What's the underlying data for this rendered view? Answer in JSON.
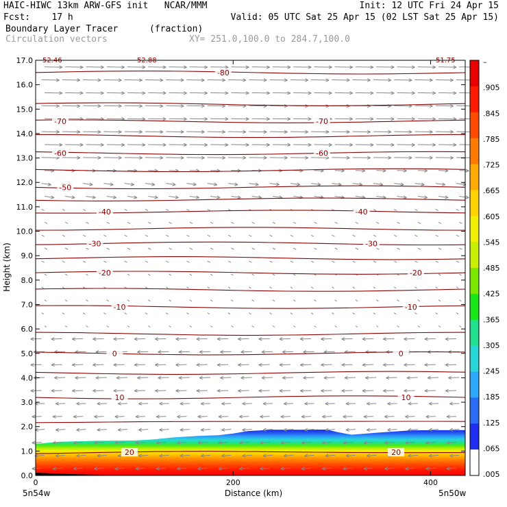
{
  "header": {
    "line1_left": "HAIC-HIWC 13km ARW-GFS init   NCAR/MMM",
    "line1_right": "Init: 12 UTC Fri 24 Apr 15",
    "fcst": "Fcst:    17 h",
    "valid": "Valid: 05 UTC Sat 25 Apr 15 (02 LST Sat 25 Apr 15)",
    "field1": "Boundary Layer Tracer",
    "field1_units": "(fraction)",
    "field2": "Circulation vectors",
    "xy_range": "XY= 251.0,100.0 to 284.7,100.0"
  },
  "corner_labels": {
    "left": "52.46",
    "mid": "52.88",
    "right": "51.75"
  },
  "colors": {
    "contour": "#8b0000",
    "vector": "#888888",
    "fill_scale": [
      "#ffffff",
      "#1f2ff0",
      "#2a6ef5",
      "#2ea8f8",
      "#28d8d8",
      "#20e090",
      "#18e818",
      "#7ce800",
      "#c8f000",
      "#f0f000",
      "#ffd200",
      "#ffaa00",
      "#ff7a00",
      "#ff4a00",
      "#ff1a00",
      "#e80000"
    ]
  },
  "chart_data": {
    "type": "heatmap",
    "xlabel": "Distance (km)",
    "ylabel": "Height (km)",
    "xlim": [
      0,
      435
    ],
    "ylim": [
      0,
      17
    ],
    "x_ticks": [
      0,
      200,
      400
    ],
    "y_ticks": [
      "0.0",
      "1.0",
      "2.0",
      "3.0",
      "4.0",
      "5.0",
      "6.0",
      "7.0",
      "8.0",
      "9.0",
      "10.0",
      "11.0",
      "12.0",
      "13.0",
      "14.0",
      "15.0",
      "16.0",
      "17.0"
    ],
    "x_end_labels": {
      "left": "5n54w",
      "right": "5n50w"
    },
    "colorbar_labels": [
      "–",
      ".905",
      ".845",
      ".785",
      ".725",
      ".665",
      ".605",
      ".545",
      ".485",
      ".425",
      ".365",
      ".305",
      ".245",
      ".185",
      ".125",
      ".065",
      ".005"
    ],
    "bl_top_km": [
      [
        0,
        1.3
      ],
      [
        25,
        1.38
      ],
      [
        60,
        1.42
      ],
      [
        100,
        1.43
      ],
      [
        120,
        1.48
      ],
      [
        140,
        1.56
      ],
      [
        165,
        1.62
      ],
      [
        185,
        1.65
      ],
      [
        200,
        1.72
      ],
      [
        215,
        1.82
      ],
      [
        240,
        1.87
      ],
      [
        270,
        1.87
      ],
      [
        295,
        1.88
      ],
      [
        305,
        1.78
      ],
      [
        320,
        1.67
      ],
      [
        345,
        1.75
      ],
      [
        380,
        1.85
      ],
      [
        435,
        1.86
      ]
    ],
    "temperature_contours": [
      {
        "value": -80,
        "height": 16.5,
        "labels": [
          [
            190,
            "-80"
          ]
        ]
      },
      {
        "value": -75,
        "height": 15.2,
        "labels": []
      },
      {
        "value": -70,
        "height": 14.5,
        "labels": [
          [
            25,
            "-70"
          ],
          [
            290,
            "-70"
          ]
        ]
      },
      {
        "value": -65,
        "height": 13.9,
        "labels": []
      },
      {
        "value": -60,
        "height": 13.2,
        "labels": [
          [
            25,
            "-60"
          ],
          [
            290,
            "-60"
          ]
        ]
      },
      {
        "value": -55,
        "height": 12.5,
        "labels": []
      },
      {
        "value": -50,
        "height": 11.8,
        "labels": [
          [
            30,
            "-50"
          ]
        ]
      },
      {
        "value": -45,
        "height": 11.3,
        "labels": []
      },
      {
        "value": -40,
        "height": 10.8,
        "labels": [
          [
            70,
            "-40"
          ],
          [
            330,
            "-40"
          ]
        ]
      },
      {
        "value": -35,
        "height": 10.1,
        "labels": []
      },
      {
        "value": -30,
        "height": 9.5,
        "labels": [
          [
            60,
            "-30"
          ],
          [
            340,
            "-30"
          ]
        ]
      },
      {
        "value": -25,
        "height": 8.9,
        "labels": []
      },
      {
        "value": -20,
        "height": 8.3,
        "labels": [
          [
            70,
            "-20"
          ],
          [
            385,
            "-20"
          ]
        ]
      },
      {
        "value": -15,
        "height": 7.6,
        "labels": []
      },
      {
        "value": -10,
        "height": 6.9,
        "labels": [
          [
            85,
            "-10"
          ],
          [
            380,
            "-10"
          ]
        ]
      },
      {
        "value": -5,
        "height": 5.8,
        "labels": []
      },
      {
        "value": 0,
        "height": 5.0,
        "labels": [
          [
            80,
            "0"
          ],
          [
            370,
            "0"
          ]
        ]
      },
      {
        "value": 5,
        "height": 4.2,
        "labels": []
      },
      {
        "value": 10,
        "height": 3.2,
        "labels": [
          [
            85,
            "10"
          ],
          [
            375,
            "10"
          ]
        ]
      },
      {
        "value": 15,
        "height": 2.2,
        "labels": []
      },
      {
        "value": 20,
        "height": 0.95,
        "labels": [
          [
            95,
            "20"
          ],
          [
            365,
            "20"
          ]
        ]
      }
    ],
    "legend": "none",
    "grid": false
  }
}
